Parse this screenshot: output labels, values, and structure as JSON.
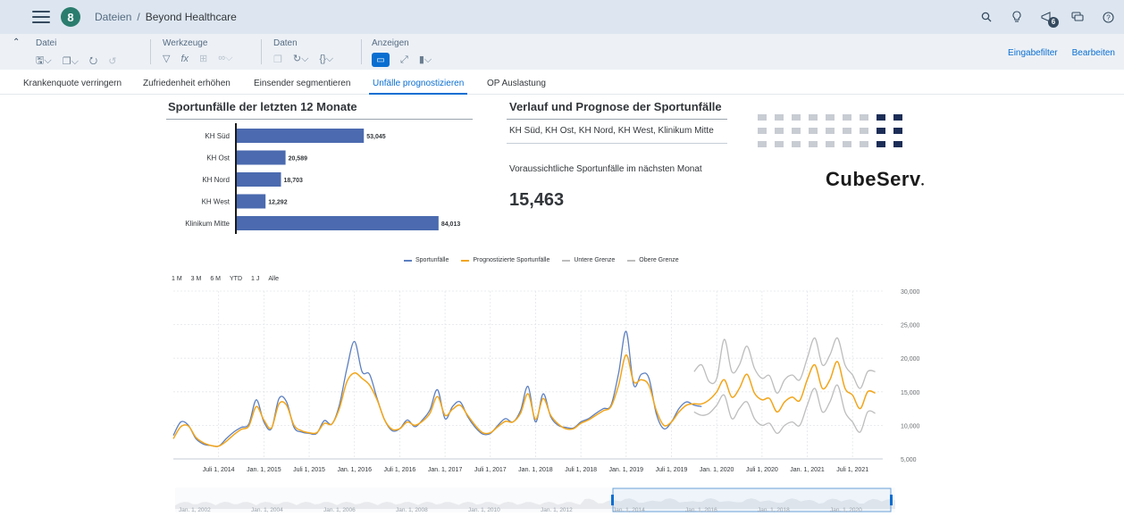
{
  "shell": {
    "avatar_letter": "8",
    "breadcrumb_root": "Dateien",
    "breadcrumb_sep": "/",
    "breadcrumb_current": "Beyond Healthcare",
    "notification_count": "6"
  },
  "toolbar": {
    "groups": [
      {
        "label": "Datei"
      },
      {
        "label": "Werkzeuge"
      },
      {
        "label": "Daten"
      },
      {
        "label": "Anzeigen"
      }
    ],
    "input_filter": "Eingabefilter",
    "edit": "Bearbeiten"
  },
  "tabs": [
    {
      "label": "Krankenquote verringern"
    },
    {
      "label": "Zufriedenheit erhöhen"
    },
    {
      "label": "Einsender segmentieren"
    },
    {
      "label": "Unfälle prognostizieren"
    },
    {
      "label": "OP Auslastung"
    }
  ],
  "bar_panel": {
    "title": "Sportunfälle der letzten 12 Monate"
  },
  "forecast_panel": {
    "title": "Verlauf und Prognose der Sportunfälle",
    "subtitle": "KH Süd, KH Ost, KH Nord, KH West, Klinikum Mitte",
    "kpi_label": "Voraussichtliche Sportunfälle im nächsten Monat",
    "kpi_value": "15,463"
  },
  "logo": {
    "text": "CubeServ"
  },
  "timeseries": {
    "legend": [
      {
        "name": "Sportunfälle",
        "color": "#5d7fc0"
      },
      {
        "name": "Prognostizierte Sportunfälle",
        "color": "#f2a51a"
      },
      {
        "name": "Untere Grenze",
        "color": "#bdbdbd"
      },
      {
        "name": "Obere Grenze",
        "color": "#bdbdbd"
      }
    ],
    "zoom_buttons": [
      "1 M",
      "3 M",
      "6 M",
      "YTD",
      "1 J",
      "Alle"
    ],
    "navigator_labels": [
      "Jan. 1, 2002",
      "Jan. 1, 2004",
      "Jan. 1, 2006",
      "Jan. 1, 2008",
      "Jan. 1, 2010",
      "Jan. 1, 2012",
      "Jan. 1, 2014",
      "Jan. 1, 2016",
      "Jan. 1, 2018",
      "Jan. 1, 2020"
    ]
  },
  "chart_data": [
    {
      "type": "bar",
      "orientation": "horizontal",
      "title": "Sportunfälle der letzten 12 Monate",
      "categories": [
        "KH Süd",
        "KH Ost",
        "KH Nord",
        "KH West",
        "Klinikum Mitte"
      ],
      "values": [
        53045,
        20589,
        18703,
        12292,
        84013
      ],
      "value_labels": [
        "53,045",
        "20,589",
        "18,703",
        "12,292",
        "84,013"
      ],
      "color": "#4b6aaf",
      "xlim": [
        0,
        100000
      ]
    },
    {
      "type": "line",
      "title": "",
      "x_tick_labels": [
        "Juli 1, 2014",
        "Jan. 1, 2015",
        "Juli 1, 2015",
        "Jan. 1, 2016",
        "Juli 1, 2016",
        "Jan. 1, 2017",
        "Juli 1, 2017",
        "Jan. 1, 2018",
        "Juli 1, 2018",
        "Jan. 1, 2019",
        "Juli 1, 2019",
        "Jan. 1, 2020",
        "Juli 1, 2020",
        "Jan. 1, 2021",
        "Juli 1, 2021"
      ],
      "x_tick_dates": [
        "2014-07",
        "2015-01",
        "2015-07",
        "2016-01",
        "2016-07",
        "2017-01",
        "2017-07",
        "2018-01",
        "2018-07",
        "2019-01",
        "2019-07",
        "2020-01",
        "2020-07",
        "2021-01",
        "2021-07"
      ],
      "y_tick_labels": [
        "5,000",
        "10,000",
        "15,000",
        "20,000",
        "25,000",
        "30,000"
      ],
      "ylim": [
        5000,
        30000
      ],
      "grid": true,
      "legend_position": "top",
      "series": [
        {
          "name": "Sportunfälle",
          "color": "#5d7fc0",
          "x": [
            "2014-01",
            "2014-02",
            "2014-03",
            "2014-04",
            "2014-05",
            "2014-06",
            "2014-07",
            "2014-08",
            "2014-09",
            "2014-10",
            "2014-11",
            "2014-12",
            "2015-01",
            "2015-02",
            "2015-03",
            "2015-04",
            "2015-05",
            "2015-06",
            "2015-07",
            "2015-08",
            "2015-09",
            "2015-10",
            "2015-11",
            "2015-12",
            "2016-01",
            "2016-02",
            "2016-03",
            "2016-04",
            "2016-05",
            "2016-06",
            "2016-07",
            "2016-08",
            "2016-09",
            "2016-10",
            "2016-11",
            "2016-12",
            "2017-01",
            "2017-02",
            "2017-03",
            "2017-04",
            "2017-05",
            "2017-06",
            "2017-07",
            "2017-08",
            "2017-09",
            "2017-10",
            "2017-11",
            "2017-12",
            "2018-01",
            "2018-02",
            "2018-03",
            "2018-04",
            "2018-05",
            "2018-06",
            "2018-07",
            "2018-08",
            "2018-09",
            "2018-10",
            "2018-11",
            "2018-12",
            "2019-01",
            "2019-02",
            "2019-03",
            "2019-04",
            "2019-05",
            "2019-06",
            "2019-07",
            "2019-08",
            "2019-09",
            "2019-10",
            "2019-11"
          ],
          "y": [
            8500,
            10500,
            10000,
            8000,
            7200,
            7000,
            6900,
            8000,
            9000,
            9700,
            10200,
            13800,
            10500,
            9500,
            14000,
            13500,
            9700,
            9000,
            8800,
            8800,
            10700,
            10200,
            13000,
            18500,
            22500,
            18000,
            17600,
            14000,
            10800,
            9200,
            9500,
            10800,
            9800,
            10800,
            12300,
            15300,
            11000,
            12800,
            13500,
            11300,
            9700,
            8700,
            8800,
            10000,
            11000,
            10500,
            12200,
            15800,
            10500,
            14700,
            11300,
            10000,
            9700,
            9600,
            10500,
            11000,
            11800,
            12500,
            13000,
            17800,
            24000,
            16000,
            17600,
            17100,
            11700,
            9500,
            10500,
            12500,
            13500,
            13000,
            12800
          ]
        },
        {
          "name": "Prognostizierte Sportunfälle",
          "color": "#f2a51a",
          "x": [
            "2014-01",
            "2014-02",
            "2014-03",
            "2014-04",
            "2014-05",
            "2014-06",
            "2014-07",
            "2014-08",
            "2014-09",
            "2014-10",
            "2014-11",
            "2014-12",
            "2015-01",
            "2015-02",
            "2015-03",
            "2015-04",
            "2015-05",
            "2015-06",
            "2015-07",
            "2015-08",
            "2015-09",
            "2015-10",
            "2015-11",
            "2015-12",
            "2016-01",
            "2016-02",
            "2016-03",
            "2016-04",
            "2016-05",
            "2016-06",
            "2016-07",
            "2016-08",
            "2016-09",
            "2016-10",
            "2016-11",
            "2016-12",
            "2017-01",
            "2017-02",
            "2017-03",
            "2017-04",
            "2017-05",
            "2017-06",
            "2017-07",
            "2017-08",
            "2017-09",
            "2017-10",
            "2017-11",
            "2017-12",
            "2018-01",
            "2018-02",
            "2018-03",
            "2018-04",
            "2018-05",
            "2018-06",
            "2018-07",
            "2018-08",
            "2018-09",
            "2018-10",
            "2018-11",
            "2018-12",
            "2019-01",
            "2019-02",
            "2019-03",
            "2019-04",
            "2019-05",
            "2019-06",
            "2019-07",
            "2019-08",
            "2019-09",
            "2019-10",
            "2019-11",
            "2019-12",
            "2020-01",
            "2020-02",
            "2020-03",
            "2020-04",
            "2020-05",
            "2020-06",
            "2020-07",
            "2020-08",
            "2020-09",
            "2020-10",
            "2020-11",
            "2020-12",
            "2021-01",
            "2021-02",
            "2021-03",
            "2021-04",
            "2021-05",
            "2021-06",
            "2021-07",
            "2021-08",
            "2021-09",
            "2021-10"
          ],
          "y": [
            8000,
            9800,
            9900,
            8200,
            7400,
            7000,
            6900,
            7600,
            8600,
            9400,
            9900,
            12800,
            10800,
            9600,
            13200,
            13000,
            10000,
            9200,
            8900,
            8900,
            10300,
            10200,
            12500,
            16500,
            17800,
            17000,
            16000,
            13800,
            10800,
            9400,
            9500,
            10500,
            10000,
            10600,
            11800,
            14300,
            11500,
            12400,
            13000,
            11500,
            10000,
            8900,
            8900,
            9800,
            10600,
            10500,
            11800,
            14700,
            10900,
            14000,
            11500,
            10200,
            9500,
            9500,
            10300,
            10800,
            11500,
            12200,
            12800,
            16000,
            20500,
            16500,
            16800,
            16000,
            12200,
            10000,
            10500,
            12000,
            13000,
            13200,
            13200,
            13800,
            15000,
            16800,
            14200,
            15500,
            17600,
            14800,
            13800,
            14000,
            12000,
            13500,
            14200,
            13700,
            16800,
            19000,
            15500,
            16800,
            19500,
            15500,
            14500,
            12500,
            15000,
            14800
          ]
        },
        {
          "name": "Untere Grenze",
          "color": "#bdbdbd",
          "x": [
            "2019-10",
            "2019-11",
            "2019-12",
            "2020-01",
            "2020-02",
            "2020-03",
            "2020-04",
            "2020-05",
            "2020-06",
            "2020-07",
            "2020-08",
            "2020-09",
            "2020-10",
            "2020-11",
            "2020-12",
            "2021-01",
            "2021-02",
            "2021-03",
            "2021-04",
            "2021-05",
            "2021-06",
            "2021-07",
            "2021-08",
            "2021-09",
            "2021-10"
          ],
          "y": [
            12000,
            11500,
            11800,
            13000,
            14500,
            11000,
            12500,
            13500,
            11000,
            10000,
            10300,
            8800,
            10000,
            10500,
            10000,
            13000,
            15500,
            12000,
            13500,
            16000,
            12000,
            10500,
            9000,
            12000,
            11800
          ]
        },
        {
          "name": "Obere Grenze",
          "color": "#bdbdbd",
          "x": [
            "2019-10",
            "2019-11",
            "2019-12",
            "2020-01",
            "2020-02",
            "2020-03",
            "2020-04",
            "2020-05",
            "2020-06",
            "2020-07",
            "2020-08",
            "2020-09",
            "2020-10",
            "2020-11",
            "2020-12",
            "2021-01",
            "2021-02",
            "2021-03",
            "2021-04",
            "2021-05",
            "2021-06",
            "2021-07",
            "2021-08",
            "2021-09",
            "2021-10"
          ],
          "y": [
            18000,
            19000,
            16500,
            17000,
            22800,
            18000,
            19000,
            21800,
            18500,
            17000,
            17400,
            14800,
            16800,
            17500,
            16800,
            20000,
            23000,
            19000,
            20500,
            23000,
            19000,
            17500,
            15500,
            18000,
            18000
          ]
        }
      ]
    }
  ]
}
